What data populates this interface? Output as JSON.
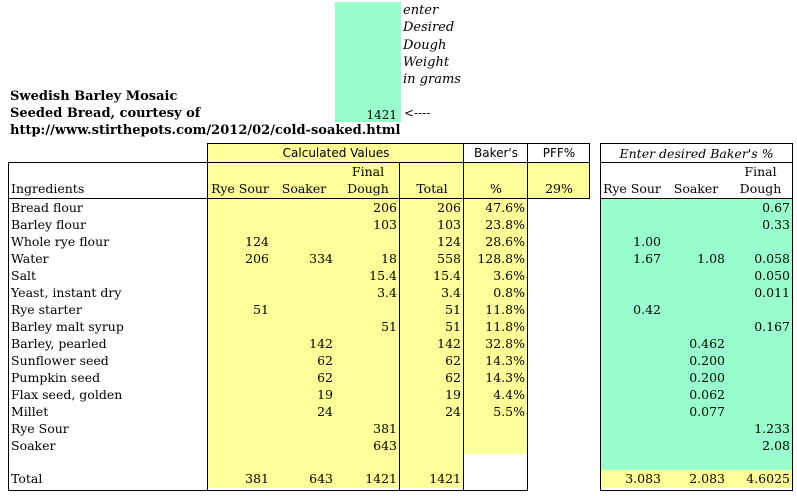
{
  "title_lines": [
    "Swedish Barley Mosaic",
    "Seeded Bread, courtesy of",
    "http://www.stirthepots.com/2012/02/cold-soaked.html"
  ],
  "desired_weight": {
    "value": "1421",
    "label_lines": [
      "enter",
      "Desired",
      "Dough",
      "Weight",
      "in grams"
    ],
    "arrow": "<----"
  },
  "headers": {
    "calculated_values": "Calculated Values",
    "bakers": "Baker's",
    "pff": "PFF%",
    "enter_desired": "Enter desired Baker's %",
    "ingredients": "Ingredients",
    "rye_sour": "Rye Sour",
    "soaker": "Soaker",
    "final_line1": "Final",
    "final_line2": "Dough",
    "total": "Total",
    "percent": "%",
    "pff_value": "29%",
    "right_rye_sour": "Rye Sour",
    "right_soaker": "Soaker",
    "right_final_line1": "Final",
    "right_final_line2": "Dough"
  },
  "rows": [
    {
      "name": "Bread flour",
      "rye": "",
      "soaker": "",
      "final": "206",
      "total": "206",
      "pct": "47.6%",
      "b_rye": "",
      "b_soaker": "",
      "b_final": "0.67"
    },
    {
      "name": "Barley flour",
      "rye": "",
      "soaker": "",
      "final": "103",
      "total": "103",
      "pct": "23.8%",
      "b_rye": "",
      "b_soaker": "",
      "b_final": "0.33"
    },
    {
      "name": "Whole rye flour",
      "rye": "124",
      "soaker": "",
      "final": "",
      "total": "124",
      "pct": "28.6%",
      "b_rye": "1.00",
      "b_soaker": "",
      "b_final": ""
    },
    {
      "name": "Water",
      "rye": "206",
      "soaker": "334",
      "final": "18",
      "total": "558",
      "pct": "128.8%",
      "b_rye": "1.67",
      "b_soaker": "1.08",
      "b_final": "0.058"
    },
    {
      "name": "Salt",
      "rye": "",
      "soaker": "",
      "final": "15.4",
      "total": "15.4",
      "pct": "3.6%",
      "b_rye": "",
      "b_soaker": "",
      "b_final": "0.050"
    },
    {
      "name": "Yeast, instant dry",
      "rye": "",
      "soaker": "",
      "final": "3.4",
      "total": "3.4",
      "pct": "0.8%",
      "b_rye": "",
      "b_soaker": "",
      "b_final": "0.011"
    },
    {
      "name": "Rye starter",
      "rye": "51",
      "soaker": "",
      "final": "",
      "total": "51",
      "pct": "11.8%",
      "b_rye": "0.42",
      "b_soaker": "",
      "b_final": ""
    },
    {
      "name": "Barley malt syrup",
      "rye": "",
      "soaker": "",
      "final": "51",
      "total": "51",
      "pct": "11.8%",
      "b_rye": "",
      "b_soaker": "",
      "b_final": "0.167"
    },
    {
      "name": "Barley, pearled",
      "rye": "",
      "soaker": "142",
      "final": "",
      "total": "142",
      "pct": "32.8%",
      "b_rye": "",
      "b_soaker": "0.462",
      "b_final": ""
    },
    {
      "name": "Sunflower seed",
      "rye": "",
      "soaker": "62",
      "final": "",
      "total": "62",
      "pct": "14.3%",
      "b_rye": "",
      "b_soaker": "0.200",
      "b_final": ""
    },
    {
      "name": "Pumpkin seed",
      "rye": "",
      "soaker": "62",
      "final": "",
      "total": "62",
      "pct": "14.3%",
      "b_rye": "",
      "b_soaker": "0.200",
      "b_final": ""
    },
    {
      "name": "Flax seed, golden",
      "rye": "",
      "soaker": "19",
      "final": "",
      "total": "19",
      "pct": "4.4%",
      "b_rye": "",
      "b_soaker": "0.062",
      "b_final": ""
    },
    {
      "name": "Millet",
      "rye": "",
      "soaker": "24",
      "final": "",
      "total": "24",
      "pct": "5.5%",
      "b_rye": "",
      "b_soaker": "0.077",
      "b_final": ""
    },
    {
      "name": "Rye Sour",
      "rye": "",
      "soaker": "",
      "final": "381",
      "total": "",
      "pct": "",
      "b_rye": "",
      "b_soaker": "",
      "b_final": "1.233"
    },
    {
      "name": "Soaker",
      "rye": "",
      "soaker": "",
      "final": "643",
      "total": "",
      "pct": "",
      "b_rye": "",
      "b_soaker": "",
      "b_final": "2.08"
    }
  ],
  "totals": {
    "name": "Total",
    "rye": "381",
    "soaker": "643",
    "final": "1421",
    "total": "1421",
    "b_rye": "3.083",
    "b_soaker": "2.083",
    "b_final": "4.6025"
  },
  "colors": {
    "input_green": "#99ffcc",
    "calc_yellow": "#ffff99"
  }
}
